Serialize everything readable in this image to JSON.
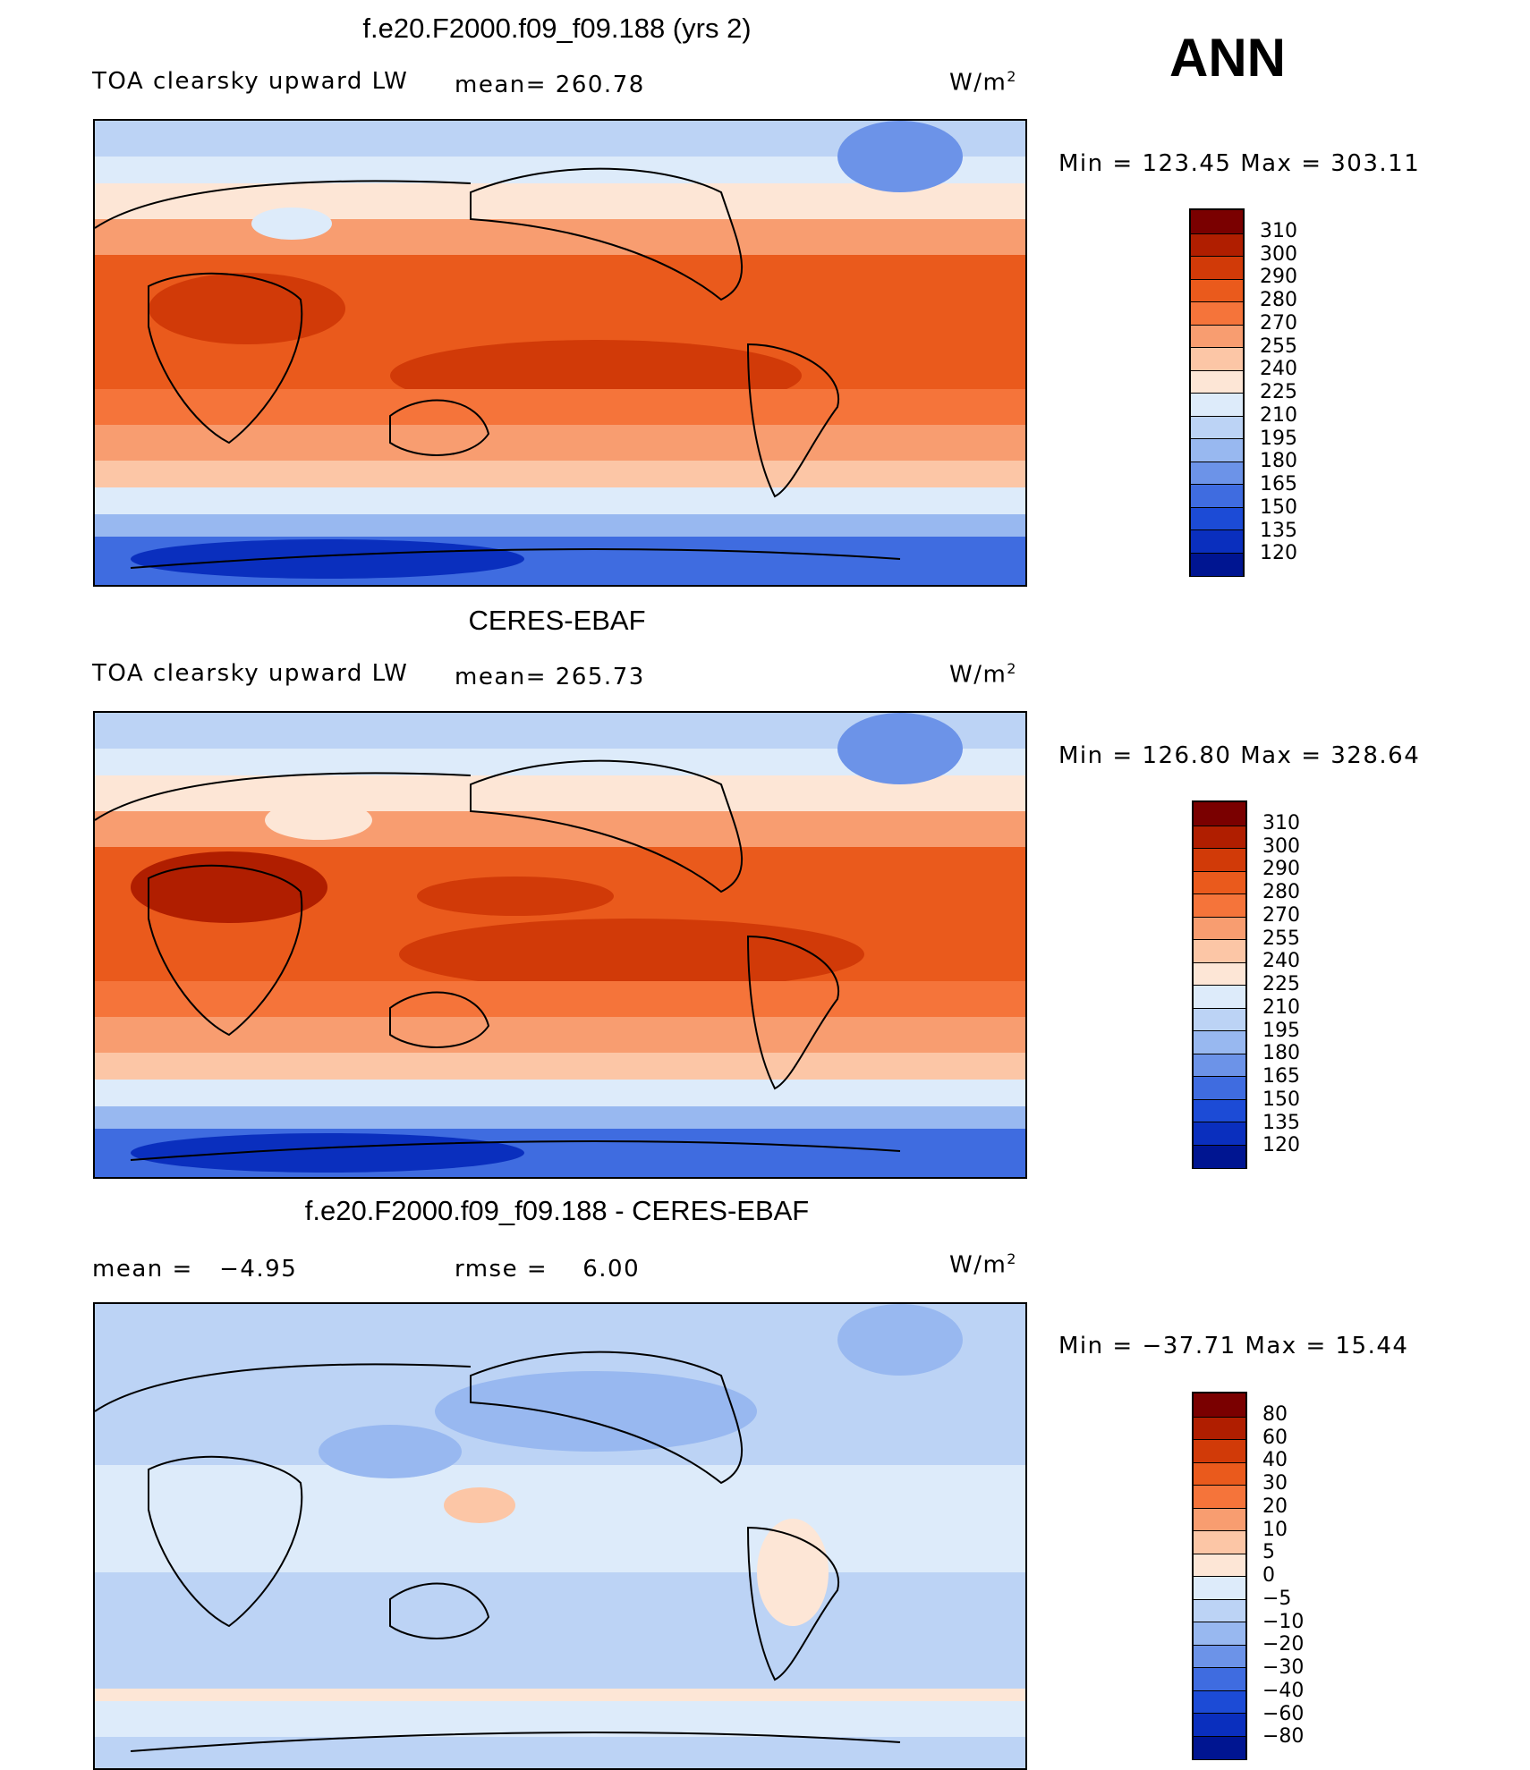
{
  "season": "ANN",
  "units": "W/m",
  "units_sup": "2",
  "panels": [
    {
      "title": "f.e20.F2000.f09_f09.188 (yrs 2)",
      "variable": "TOA clearsky upward LW",
      "mean_label": "mean=",
      "mean_value": "260.78",
      "min_max_label": "Min  =  123.45  Max  =  303.11",
      "scale": "abs"
    },
    {
      "title": "CERES-EBAF",
      "variable": "TOA clearsky upward LW",
      "mean_label": "mean=",
      "mean_value": "265.73",
      "min_max_label": "Min  =  126.80  Max  =  328.64",
      "scale": "abs"
    },
    {
      "title": "f.e20.F2000.f09_f09.188 - CERES-EBAF",
      "mean_label": "mean  =",
      "mean_value": "−4.95",
      "rmse_label": "rmse  =",
      "rmse_value": "6.00",
      "min_max_label": "Min  =  −37.71  Max  =    15.44",
      "scale": "diff"
    }
  ],
  "colorbars": {
    "abs": {
      "labels": [
        "310",
        "300",
        "290",
        "280",
        "270",
        "255",
        "240",
        "225",
        "210",
        "195",
        "180",
        "165",
        "150",
        "135",
        "120"
      ],
      "colors": [
        "#7a0000",
        "#b01e00",
        "#d13a08",
        "#ea5a1c",
        "#f5743a",
        "#f89d70",
        "#fcc6a6",
        "#fde6d6",
        "#ddebfa",
        "#bcd3f5",
        "#98b8f0",
        "#6c93e8",
        "#3f6ce0",
        "#1c4bd6",
        "#0a2fbe",
        "#001591"
      ]
    },
    "diff": {
      "labels": [
        "80",
        "60",
        "40",
        "30",
        "20",
        "10",
        "5",
        "0",
        "−5",
        "−10",
        "−20",
        "−30",
        "−40",
        "−60",
        "−80"
      ],
      "colors": [
        "#7a0000",
        "#b01e00",
        "#d13a08",
        "#ea5a1c",
        "#f5743a",
        "#f89d70",
        "#fcc6a6",
        "#fde6d6",
        "#ddebfa",
        "#bcd3f5",
        "#98b8f0",
        "#6c93e8",
        "#3f6ce0",
        "#1c4bd6",
        "#0a2fbe",
        "#001591"
      ]
    }
  }
}
